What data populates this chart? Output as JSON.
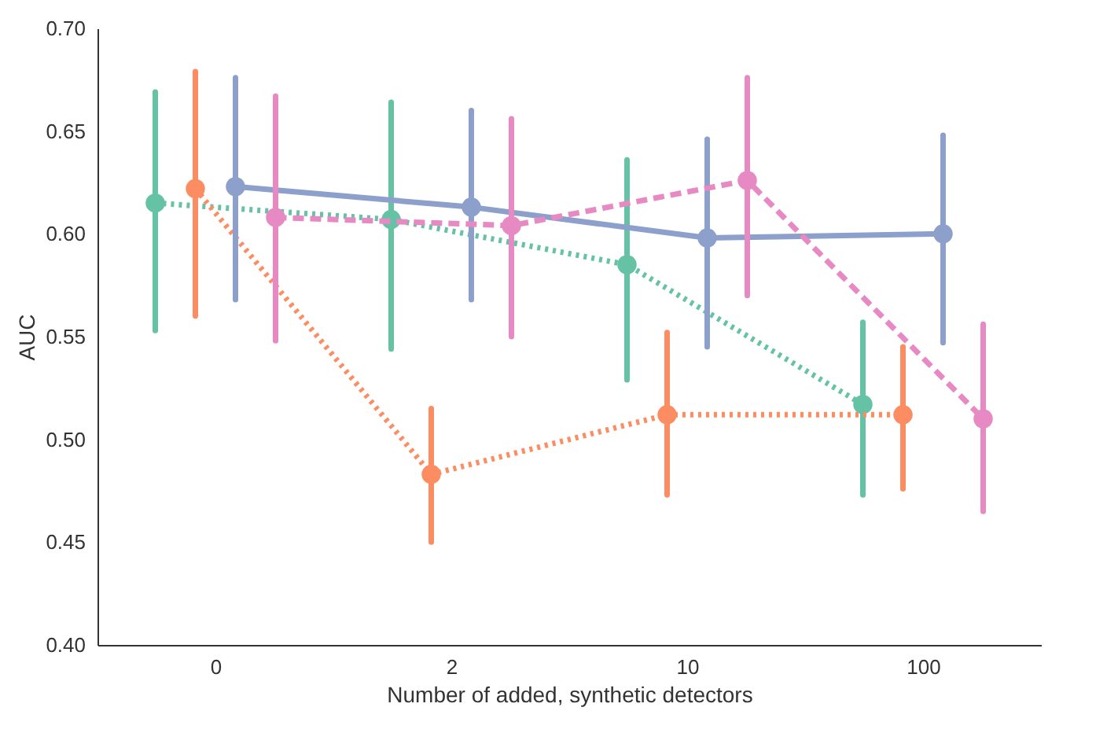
{
  "chart_data": {
    "type": "line",
    "xlabel": "Number of added, synthetic detectors",
    "ylabel": "AUC",
    "categories": [
      "0",
      "2",
      "10",
      "100"
    ],
    "ylim": [
      0.4,
      0.7
    ],
    "yticks": [
      {
        "value": 0.4,
        "label": "0.40"
      },
      {
        "value": 0.45,
        "label": "0.45"
      },
      {
        "value": 0.5,
        "label": "0.50"
      },
      {
        "value": 0.55,
        "label": "0.55"
      },
      {
        "value": 0.6,
        "label": "0.60"
      },
      {
        "value": 0.65,
        "label": "0.65"
      },
      {
        "value": 0.7,
        "label": "0.70"
      }
    ],
    "grid": false,
    "marker": "circle",
    "series": [
      {
        "color": "#66c2a5",
        "line_style": "dotted",
        "values": [
          0.615,
          0.607,
          0.585,
          0.517
        ],
        "errors": [
          [
            0.553,
            0.669
          ],
          [
            0.544,
            0.664
          ],
          [
            0.529,
            0.636
          ],
          [
            0.473,
            0.557
          ]
        ]
      },
      {
        "color": "#fc8d62",
        "line_style": "dotted",
        "values": [
          0.622,
          0.483,
          0.512,
          0.512
        ],
        "errors": [
          [
            0.56,
            0.679
          ],
          [
            0.45,
            0.515
          ],
          [
            0.473,
            0.552
          ],
          [
            0.476,
            0.545
          ]
        ]
      },
      {
        "color": "#8da0cb",
        "line_style": "solid",
        "values": [
          0.623,
          0.613,
          0.598,
          0.6
        ],
        "errors": [
          [
            0.568,
            0.676
          ],
          [
            0.568,
            0.66
          ],
          [
            0.545,
            0.646
          ],
          [
            0.547,
            0.648
          ]
        ]
      },
      {
        "color": "#e78ac3",
        "line_style": "dashed",
        "values": [
          0.608,
          0.604,
          0.626,
          0.51
        ],
        "errors": [
          [
            0.548,
            0.667
          ],
          [
            0.55,
            0.656
          ],
          [
            0.57,
            0.676
          ],
          [
            0.465,
            0.556
          ]
        ]
      }
    ]
  }
}
